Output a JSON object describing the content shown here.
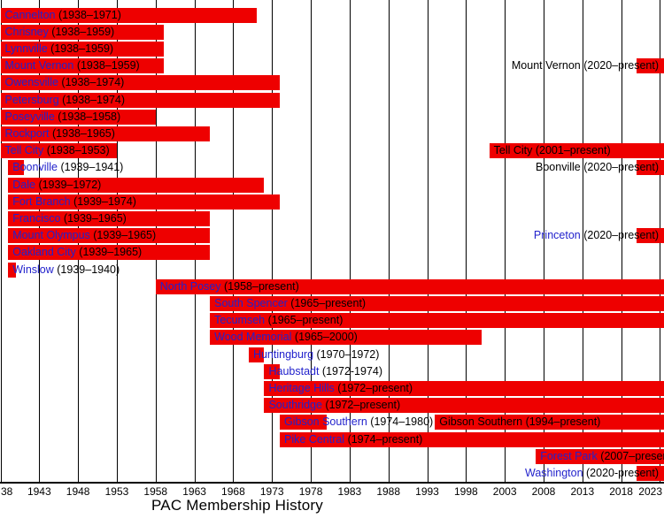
{
  "chart_data": {
    "type": "gantt",
    "title": "PAC Membership History",
    "x_axis": {
      "start": 1938,
      "end": 2023,
      "tick_interval": 5,
      "ticks": [
        1938,
        1943,
        1948,
        1953,
        1958,
        1963,
        1968,
        1973,
        1978,
        1983,
        1988,
        1993,
        1998,
        2003,
        2008,
        2013,
        2018,
        2023
      ],
      "tick_labels": [
        "38",
        "1943",
        "1948",
        "1953",
        "1958",
        "1963",
        "1968",
        "1973",
        "1978",
        "1983",
        "1988",
        "1993",
        "1998",
        "2003",
        "2008",
        "2013",
        "2018",
        "2023"
      ]
    },
    "colors": {
      "bar": "#ee0000",
      "link_text": "#2222cc",
      "plain_text": "#000000",
      "gridline": "#000000",
      "background": "#ffffff"
    },
    "present_year": 2023,
    "rows": [
      {
        "entries": [
          {
            "school": "Cannelton",
            "years_label": "(1938–1971)",
            "start": 1938,
            "end": 1971,
            "link": true,
            "label_side": "left"
          }
        ]
      },
      {
        "entries": [
          {
            "school": "Chrisney",
            "years_label": "(1938–1959)",
            "start": 1938,
            "end": 1959,
            "link": true,
            "label_side": "left"
          }
        ]
      },
      {
        "entries": [
          {
            "school": "Lynnville",
            "years_label": "(1938–1959)",
            "start": 1938,
            "end": 1959,
            "link": true,
            "label_side": "left"
          }
        ]
      },
      {
        "entries": [
          {
            "school": "Mount Vernon",
            "years_label": "(1938–1959)",
            "start": 1938,
            "end": 1959,
            "link": true,
            "label_side": "left"
          },
          {
            "school": "Mount Vernon",
            "years_label": "(2020–present)",
            "start": 2020,
            "end": "present",
            "link": false,
            "label_side": "right"
          }
        ]
      },
      {
        "entries": [
          {
            "school": "Owensville",
            "years_label": "(1938–1974)",
            "start": 1938,
            "end": 1974,
            "link": true,
            "label_side": "left"
          }
        ]
      },
      {
        "entries": [
          {
            "school": "Petersburg",
            "years_label": "(1938–1974)",
            "start": 1938,
            "end": 1974,
            "link": true,
            "label_side": "left"
          }
        ]
      },
      {
        "entries": [
          {
            "school": "Poseyville",
            "years_label": "(1938–1958)",
            "start": 1938,
            "end": 1958,
            "link": true,
            "label_side": "left"
          }
        ]
      },
      {
        "entries": [
          {
            "school": "Rockport",
            "years_label": "(1938–1965)",
            "start": 1938,
            "end": 1965,
            "link": true,
            "label_side": "left"
          }
        ]
      },
      {
        "entries": [
          {
            "school": "Tell City",
            "years_label": "(1938–1953)",
            "start": 1938,
            "end": 1953,
            "link": true,
            "label_side": "left"
          },
          {
            "school": "Tell City",
            "years_label": "(2001–present)",
            "start": 2001,
            "end": "present",
            "link": false,
            "label_side": "left"
          }
        ]
      },
      {
        "entries": [
          {
            "school": "Boonville",
            "years_label": "(1939–1941)",
            "start": 1939,
            "end": 1941,
            "link": true,
            "label_side": "left"
          },
          {
            "school": "Boonville",
            "years_label": "(2020–present)",
            "start": 2020,
            "end": "present",
            "link": false,
            "label_side": "right"
          }
        ]
      },
      {
        "entries": [
          {
            "school": "Dale",
            "years_label": "(1939–1972)",
            "start": 1939,
            "end": 1972,
            "link": true,
            "label_side": "left"
          }
        ]
      },
      {
        "entries": [
          {
            "school": "Fort Branch",
            "years_label": "(1939–1974)",
            "start": 1939,
            "end": 1974,
            "link": true,
            "label_side": "left"
          }
        ]
      },
      {
        "entries": [
          {
            "school": "Francisco",
            "years_label": "(1939–1965)",
            "start": 1939,
            "end": 1965,
            "link": true,
            "label_side": "left"
          }
        ]
      },
      {
        "entries": [
          {
            "school": "Mount Olympus",
            "years_label": "(1939–1965)",
            "start": 1939,
            "end": 1965,
            "link": true,
            "label_side": "left"
          },
          {
            "school": "Princeton",
            "years_label": "(2020–present)",
            "start": 2020,
            "end": "present",
            "link": true,
            "label_side": "right"
          }
        ]
      },
      {
        "entries": [
          {
            "school": "Oakland City",
            "years_label": "(1939–1965)",
            "start": 1939,
            "end": 1965,
            "link": true,
            "label_side": "left"
          }
        ]
      },
      {
        "entries": [
          {
            "school": "Winslow",
            "years_label": "(1939–1940)",
            "start": 1939,
            "end": 1940,
            "link": true,
            "label_side": "left"
          }
        ]
      },
      {
        "entries": [
          {
            "school": "North Posey",
            "years_label": "(1958–present)",
            "start": 1958,
            "end": "present",
            "link": true,
            "label_side": "left"
          }
        ]
      },
      {
        "entries": [
          {
            "school": "South Spencer",
            "years_label": "(1965–present)",
            "start": 1965,
            "end": "present",
            "link": true,
            "label_side": "left"
          }
        ]
      },
      {
        "entries": [
          {
            "school": "Tecumseh",
            "years_label": "(1965–present)",
            "start": 1965,
            "end": "present",
            "link": true,
            "label_side": "left"
          }
        ]
      },
      {
        "entries": [
          {
            "school": "Wood Memorial",
            "years_label": "(1965–2000)",
            "start": 1965,
            "end": 2000,
            "link": true,
            "label_side": "left"
          }
        ]
      },
      {
        "entries": [
          {
            "school": "Huntingburg",
            "years_label": "(1970–1972)",
            "start": 1970,
            "end": 1972,
            "link": true,
            "label_side": "left"
          }
        ]
      },
      {
        "entries": [
          {
            "school": "Haubstadt",
            "years_label": "(1972-1974)",
            "start": 1972,
            "end": 1974,
            "link": true,
            "label_side": "left"
          }
        ]
      },
      {
        "entries": [
          {
            "school": "Heritage Hills",
            "years_label": "(1972–present)",
            "start": 1972,
            "end": "present",
            "link": true,
            "label_side": "left"
          }
        ]
      },
      {
        "entries": [
          {
            "school": "Southridge",
            "years_label": "(1972–present)",
            "start": 1972,
            "end": "present",
            "link": true,
            "label_side": "left"
          }
        ]
      },
      {
        "entries": [
          {
            "school": "Gibson Southern",
            "years_label": "(1974–1980)",
            "start": 1974,
            "end": 1980,
            "link": true,
            "label_side": "left"
          },
          {
            "school": "Gibson Southern",
            "years_label": "(1994–present)",
            "start": 1994,
            "end": "present",
            "link": false,
            "label_side": "left"
          }
        ]
      },
      {
        "entries": [
          {
            "school": "Pike Central",
            "years_label": "(1974–present)",
            "start": 1974,
            "end": "present",
            "link": true,
            "label_side": "left"
          }
        ]
      },
      {
        "entries": [
          {
            "school": "Forest Park",
            "years_label": "(2007–present)",
            "start": 2007,
            "end": "present",
            "link": true,
            "label_side": "left"
          }
        ]
      },
      {
        "entries": [
          {
            "school": "Washington",
            "years_label": "(2020-present)",
            "start": 2020,
            "end": "present",
            "link": true,
            "label_side": "right"
          }
        ]
      }
    ]
  }
}
